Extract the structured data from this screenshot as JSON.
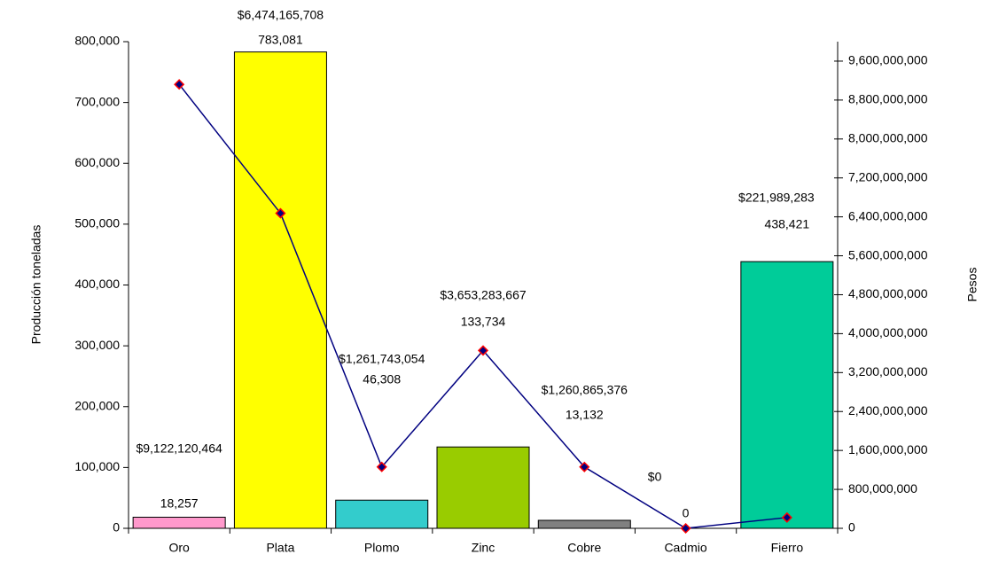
{
  "chart_data": {
    "type": "bar",
    "categories": [
      "Oro",
      "Plata",
      "Plomo",
      "Zinc",
      "Cobre",
      "Cadmio",
      "Fierro"
    ],
    "ylabel": "Producción toneladas",
    "y2label": "Pesos",
    "ylim": [
      0,
      800000
    ],
    "yticks": [
      0,
      {
        "value": 100000,
        "label": "100,000"
      },
      {
        "value": 200000,
        "label": "200,000"
      },
      {
        "value": 300000,
        "label": "300,000"
      },
      {
        "value": 400000,
        "label": "400,000"
      },
      {
        "value": 500000,
        "label": "500,000"
      },
      {
        "value": 600000,
        "label": "600,000"
      },
      {
        "value": 700000,
        "label": "700,000"
      },
      {
        "value": 800000,
        "label": "800,000"
      }
    ],
    "y2lim": [
      0,
      10000000000
    ],
    "y2ticks": [
      0,
      {
        "value": 800000000,
        "label": "800,000,000"
      },
      {
        "value": 1600000000,
        "label": "1,600,000,000"
      },
      {
        "value": 2400000000,
        "label": "2,400,000,000"
      },
      {
        "value": 3200000000,
        "label": "3,200,000,000"
      },
      {
        "value": 4000000000,
        "label": "4,000,000,000"
      },
      {
        "value": 4800000000,
        "label": "4,800,000,000"
      },
      {
        "value": 5600000000,
        "label": "5,600,000,000"
      },
      {
        "value": 6400000000,
        "label": "6,400,000,000"
      },
      {
        "value": 7200000000,
        "label": "7,200,000,000"
      },
      {
        "value": 8000000000,
        "label": "8,000,000,000"
      },
      {
        "value": 8800000000,
        "label": "8,800,000,000"
      },
      {
        "value": 9600000000,
        "label": "9,600,000,000"
      }
    ],
    "series": [
      {
        "type": "bar",
        "colors": [
          "#ff99cc",
          "#ffff00",
          "#33cccc",
          "#99cc00",
          "#808080",
          null,
          "#00cc99"
        ],
        "values": [
          18257,
          783081,
          46308,
          133734,
          13132,
          0,
          438421
        ],
        "value_labels": [
          "18,257",
          "783,081",
          "46,308",
          "133,734",
          "13,132",
          "0",
          "438,421"
        ]
      },
      {
        "type": "line",
        "axis": "y2",
        "color": "#000080",
        "marker_edge": "#ff0000",
        "values": [
          9122120464,
          6474165708,
          1261743054,
          3653283667,
          1260865376,
          0,
          221989283
        ],
        "value_labels": [
          "$9,122,120,464",
          "$6,474,165,708",
          "$1,261,743,054",
          "$3,653,283,667",
          "$1,260,865,376",
          "$0",
          "$221,989,283"
        ]
      }
    ]
  }
}
